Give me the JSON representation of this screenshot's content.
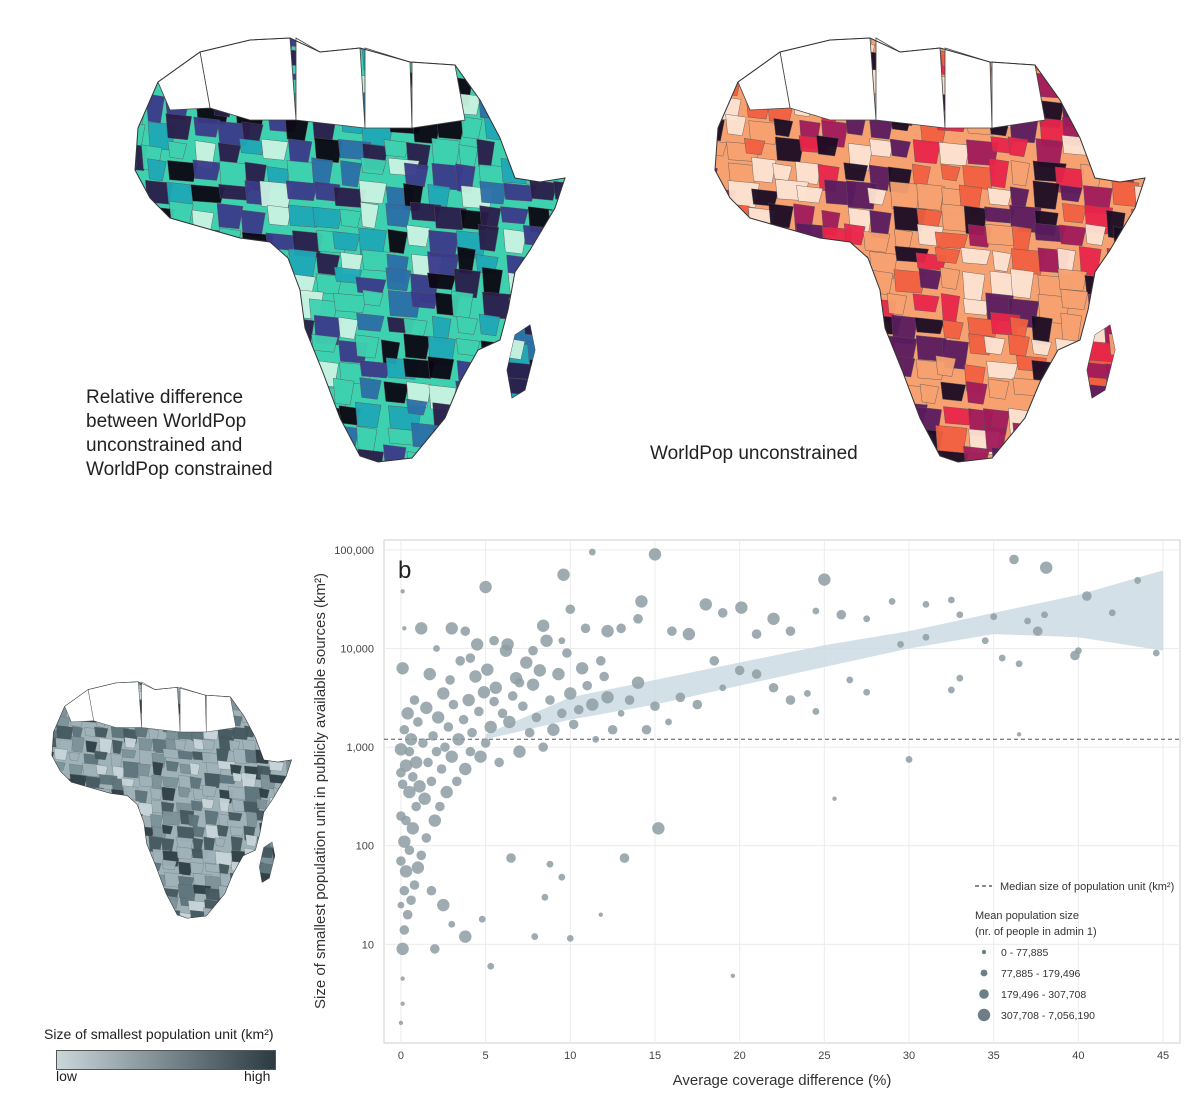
{
  "maps": [
    {
      "caption": "Relative difference\nbetween WorldPop\nunconstrained and\nWorldPop constrained",
      "palette": [
        "#c9f2e2",
        "#3ed1b0",
        "#1fa8b6",
        "#2b6fa8",
        "#3b3a8a",
        "#2a1c4a",
        "#0b0612"
      ]
    },
    {
      "caption": "WorldPop unconstrained",
      "palette": [
        "#fce3d2",
        "#f7a070",
        "#f06040",
        "#e8254a",
        "#a01a5a",
        "#5a1b5e",
        "#1a0c24"
      ]
    },
    {
      "caption": "Size of smallest population unit (km²)",
      "palette": [
        "#c8d6da",
        "#9fb2b8",
        "#7c9299",
        "#5d747b",
        "#43575e",
        "#2e3e44"
      ]
    }
  ],
  "gradient_legend": {
    "low": "low",
    "high": "high"
  },
  "chart_data": {
    "type": "scatter",
    "panel_label": "b",
    "xlabel": "Average coverage difference (%)",
    "ylabel": "Size of smallest population unit in publicly available sources (km²)",
    "xlim": [
      -1,
      46
    ],
    "ylim_log10": [
      0,
      5.1
    ],
    "x_ticks": [
      0,
      5,
      10,
      15,
      20,
      25,
      30,
      35,
      40,
      45
    ],
    "y_ticks": [
      {
        "value": 10,
        "label": "10"
      },
      {
        "value": 100,
        "label": "100"
      },
      {
        "value": 1000,
        "label": "1,000"
      },
      {
        "value": 10000,
        "label": "10,000"
      },
      {
        "value": 100000,
        "label": "100,000"
      }
    ],
    "grid": true,
    "median_line": {
      "y": 1200,
      "label": "Median size of population unit (km²)"
    },
    "trend_band": {
      "x": [
        5,
        10,
        15,
        20,
        25,
        30,
        35,
        40,
        45
      ],
      "lower": [
        1200,
        1900,
        2700,
        4200,
        6500,
        10000,
        14000,
        13000,
        9500
      ],
      "upper": [
        1350,
        3200,
        4800,
        7200,
        10800,
        15000,
        23000,
        35000,
        62000
      ]
    },
    "size_legend": {
      "title": "Mean population size",
      "subtitle": "(nr. of people in admin 1)",
      "classes": [
        "0 - 77,885",
        "77,885 - 179,496",
        "179,496 - 307,708",
        "307,708 - 7,056,190"
      ]
    },
    "point_color": "#8d9ea3",
    "points": [
      [
        0.1,
        38000,
        0
      ],
      [
        0.2,
        16000,
        0
      ],
      [
        0.1,
        6300,
        3
      ],
      [
        1.2,
        16000,
        3
      ],
      [
        2.1,
        10000,
        1
      ],
      [
        3.0,
        16000,
        3
      ],
      [
        3.8,
        15000,
        2
      ],
      [
        4.1,
        8000,
        2
      ],
      [
        4.5,
        11000,
        3
      ],
      [
        5.0,
        42000,
        3
      ],
      [
        5.5,
        12000,
        2
      ],
      [
        6.3,
        11000,
        3
      ],
      [
        7.0,
        4500,
        2
      ],
      [
        7.8,
        9500,
        2
      ],
      [
        8.4,
        17000,
        3
      ],
      [
        9.5,
        12000,
        1
      ],
      [
        9.6,
        56000,
        3
      ],
      [
        10.0,
        25000,
        2
      ],
      [
        10.9,
        16000,
        2
      ],
      [
        11.3,
        95000,
        1
      ],
      [
        12.2,
        15000,
        3
      ],
      [
        13.0,
        16000,
        2
      ],
      [
        14.0,
        20000,
        2
      ],
      [
        14.2,
        30000,
        3
      ],
      [
        15.0,
        90000,
        3
      ],
      [
        16.0,
        15000,
        2
      ],
      [
        17.0,
        14000,
        3
      ],
      [
        18.0,
        28000,
        3
      ],
      [
        19.0,
        23000,
        2
      ],
      [
        20.1,
        26000,
        3
      ],
      [
        21.0,
        14000,
        2
      ],
      [
        22.0,
        20000,
        3
      ],
      [
        23.0,
        15000,
        2
      ],
      [
        24.5,
        24000,
        1
      ],
      [
        25.0,
        50000,
        3
      ],
      [
        26.0,
        22000,
        2
      ],
      [
        27.5,
        20000,
        1
      ],
      [
        29.0,
        30000,
        1
      ],
      [
        31.0,
        28000,
        1
      ],
      [
        32.5,
        31000,
        1
      ],
      [
        33.0,
        22000,
        1
      ],
      [
        35.0,
        21000,
        1
      ],
      [
        36.2,
        80000,
        2
      ],
      [
        37.0,
        19000,
        1
      ],
      [
        38.1,
        66000,
        3
      ],
      [
        39.8,
        8500,
        2
      ],
      [
        40.5,
        34000,
        2
      ],
      [
        42.0,
        23000,
        1
      ],
      [
        43.5,
        49000,
        1
      ],
      [
        44.6,
        9000,
        1
      ],
      [
        37.6,
        15000,
        2
      ],
      [
        38.0,
        22000,
        1
      ],
      [
        40.0,
        9500,
        1
      ],
      [
        29.5,
        11000,
        1
      ],
      [
        31.0,
        13000,
        1
      ],
      [
        34.5,
        12000,
        1
      ],
      [
        35.5,
        8000,
        1
      ],
      [
        36.5,
        7000,
        1
      ],
      [
        33.0,
        5000,
        1
      ],
      [
        32.5,
        3800,
        1
      ],
      [
        26.5,
        4800,
        1
      ],
      [
        27.5,
        3600,
        1
      ],
      [
        24.0,
        3500,
        1
      ],
      [
        24.5,
        2300,
        1
      ],
      [
        23.0,
        3000,
        2
      ],
      [
        22.0,
        4000,
        2
      ],
      [
        21.0,
        5500,
        2
      ],
      [
        20.0,
        6000,
        2
      ],
      [
        19.0,
        4000,
        1
      ],
      [
        18.5,
        7500,
        2
      ],
      [
        17.5,
        2700,
        2
      ],
      [
        16.5,
        3200,
        2
      ],
      [
        15.8,
        1800,
        1
      ],
      [
        15.0,
        2600,
        2
      ],
      [
        14.5,
        1500,
        2
      ],
      [
        14.0,
        4500,
        3
      ],
      [
        13.5,
        3000,
        2
      ],
      [
        13.0,
        2200,
        1
      ],
      [
        12.5,
        1500,
        2
      ],
      [
        12.2,
        3200,
        3
      ],
      [
        12.0,
        5200,
        2
      ],
      [
        11.8,
        7500,
        2
      ],
      [
        11.5,
        1200,
        1
      ],
      [
        11.3,
        2700,
        3
      ],
      [
        11.0,
        4200,
        2
      ],
      [
        10.7,
        6300,
        3
      ],
      [
        10.5,
        2400,
        2
      ],
      [
        10.2,
        1700,
        2
      ],
      [
        10.0,
        3500,
        3
      ],
      [
        9.8,
        9000,
        2
      ],
      [
        9.5,
        2200,
        2
      ],
      [
        9.3,
        5500,
        3
      ],
      [
        9.0,
        1500,
        3
      ],
      [
        8.8,
        3000,
        2
      ],
      [
        8.6,
        12000,
        3
      ],
      [
        8.4,
        1000,
        2
      ],
      [
        8.2,
        6000,
        3
      ],
      [
        8.0,
        2000,
        2
      ],
      [
        7.8,
        4300,
        3
      ],
      [
        7.6,
        1400,
        2
      ],
      [
        7.4,
        7200,
        3
      ],
      [
        7.2,
        2600,
        2
      ],
      [
        7.0,
        900,
        3
      ],
      [
        6.8,
        5000,
        3
      ],
      [
        6.6,
        3300,
        2
      ],
      [
        6.4,
        1800,
        3
      ],
      [
        6.2,
        9500,
        3
      ],
      [
        6.0,
        2200,
        2
      ],
      [
        5.8,
        700,
        2
      ],
      [
        5.6,
        4000,
        3
      ],
      [
        5.5,
        2900,
        2
      ],
      [
        5.3,
        1600,
        3
      ],
      [
        5.1,
        6100,
        3
      ],
      [
        5.0,
        1100,
        2
      ],
      [
        4.9,
        3600,
        3
      ],
      [
        4.7,
        800,
        3
      ],
      [
        4.6,
        2300,
        2
      ],
      [
        4.4,
        5200,
        3
      ],
      [
        4.2,
        1400,
        2
      ],
      [
        4.1,
        900,
        2
      ],
      [
        4.0,
        3000,
        3
      ],
      [
        3.8,
        600,
        3
      ],
      [
        3.7,
        1900,
        2
      ],
      [
        3.5,
        7500,
        2
      ],
      [
        3.4,
        1200,
        3
      ],
      [
        3.3,
        450,
        2
      ],
      [
        3.1,
        2700,
        2
      ],
      [
        3.0,
        800,
        3
      ],
      [
        2.9,
        4800,
        2
      ],
      [
        2.8,
        1600,
        2
      ],
      [
        2.7,
        350,
        3
      ],
      [
        2.6,
        1000,
        2
      ],
      [
        2.5,
        3500,
        3
      ],
      [
        2.4,
        600,
        2
      ],
      [
        2.3,
        250,
        2
      ],
      [
        2.2,
        2000,
        3
      ],
      [
        2.1,
        900,
        2
      ],
      [
        2.0,
        180,
        3
      ],
      [
        1.9,
        1300,
        2
      ],
      [
        1.8,
        450,
        2
      ],
      [
        1.7,
        5500,
        3
      ],
      [
        1.6,
        700,
        2
      ],
      [
        1.5,
        120,
        2
      ],
      [
        1.5,
        2500,
        3
      ],
      [
        1.4,
        300,
        3
      ],
      [
        1.3,
        1100,
        2
      ],
      [
        1.2,
        80,
        2
      ],
      [
        1.1,
        400,
        3
      ],
      [
        1.0,
        1800,
        2
      ],
      [
        1.0,
        60,
        3
      ],
      [
        0.9,
        250,
        2
      ],
      [
        0.9,
        700,
        3
      ],
      [
        0.8,
        3000,
        2
      ],
      [
        0.8,
        40,
        2
      ],
      [
        0.7,
        150,
        3
      ],
      [
        0.7,
        500,
        2
      ],
      [
        0.6,
        1200,
        3
      ],
      [
        0.6,
        28,
        2
      ],
      [
        0.5,
        90,
        2
      ],
      [
        0.5,
        350,
        3
      ],
      [
        0.5,
        900,
        2
      ],
      [
        0.4,
        2200,
        3
      ],
      [
        0.4,
        20,
        2
      ],
      [
        0.3,
        55,
        3
      ],
      [
        0.3,
        180,
        2
      ],
      [
        0.3,
        650,
        3
      ],
      [
        0.2,
        1500,
        2
      ],
      [
        0.2,
        14,
        2
      ],
      [
        0.2,
        35,
        2
      ],
      [
        0.2,
        110,
        3
      ],
      [
        0.1,
        420,
        2
      ],
      [
        0.1,
        9,
        3
      ],
      [
        0.1,
        2.5,
        0
      ],
      [
        0.0,
        1.6,
        0
      ],
      [
        0.1,
        4.5,
        0
      ],
      [
        0.0,
        25,
        1
      ],
      [
        0.0,
        70,
        2
      ],
      [
        0.0,
        200,
        2
      ],
      [
        0.0,
        550,
        2
      ],
      [
        0.0,
        950,
        3
      ],
      [
        15.2,
        150,
        3
      ],
      [
        13.2,
        75,
        2
      ],
      [
        19.6,
        4.8,
        0
      ],
      [
        10.0,
        11.5,
        1
      ],
      [
        7.9,
        12,
        1
      ],
      [
        8.8,
        65,
        1
      ],
      [
        9.5,
        48,
        1
      ],
      [
        11.8,
        20,
        0
      ],
      [
        5.3,
        6,
        1
      ],
      [
        4.8,
        18,
        1
      ],
      [
        3.8,
        12,
        3
      ],
      [
        3.0,
        16,
        1
      ],
      [
        2.5,
        25,
        3
      ],
      [
        2.0,
        9,
        2
      ],
      [
        1.8,
        35,
        2
      ],
      [
        6.5,
        75,
        2
      ],
      [
        8.5,
        30,
        1
      ],
      [
        25.6,
        300,
        0
      ],
      [
        30.0,
        750,
        1
      ],
      [
        36.5,
        1350,
        0
      ]
    ]
  }
}
